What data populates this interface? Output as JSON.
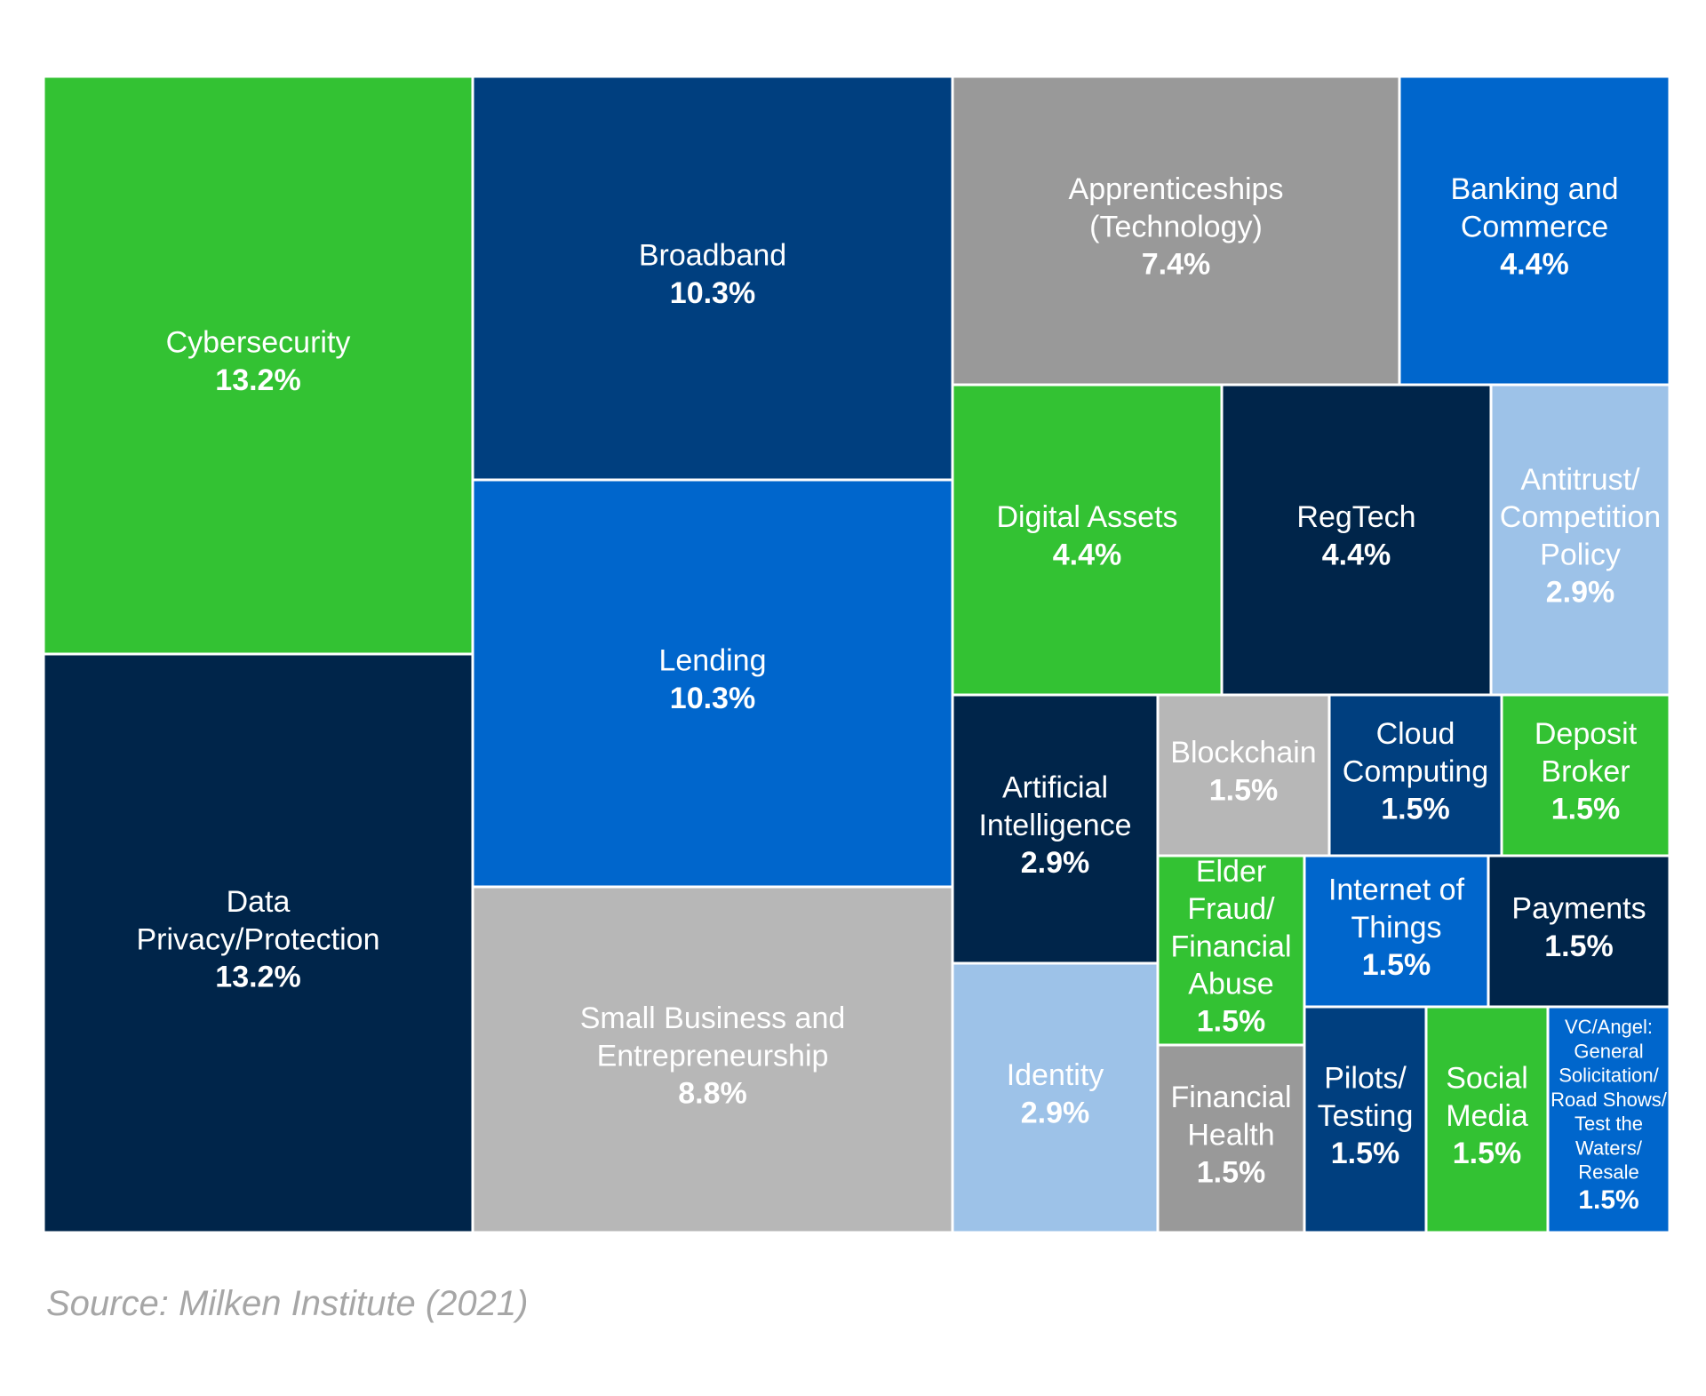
{
  "chart_data": {
    "type": "treemap",
    "title": "",
    "colors": {
      "green": "#33c233",
      "navy": "#003f7f",
      "dark_navy": "#00254a",
      "blue": "#0066cc",
      "gray": "#999999",
      "light_gray": "#b7b7b7",
      "light_blue": "#9dc2e8",
      "white": "#ffffff"
    },
    "items": [
      {
        "lines": [
          "Cybersecurity"
        ],
        "value_label": "13.2%",
        "value": 13.2,
        "color": "#33c233"
      },
      {
        "lines": [
          "Data",
          "Privacy/Protection"
        ],
        "value_label": "13.2%",
        "value": 13.2,
        "color": "#00254a"
      },
      {
        "lines": [
          "Broadband"
        ],
        "value_label": "10.3%",
        "value": 10.3,
        "color": "#003f7f"
      },
      {
        "lines": [
          "Lending"
        ],
        "value_label": "10.3%",
        "value": 10.3,
        "color": "#0066cc"
      },
      {
        "lines": [
          "Small Business and",
          "Entrepreneurship"
        ],
        "value_label": "8.8%",
        "value": 8.8,
        "color": "#b7b7b7"
      },
      {
        "lines": [
          "Apprenticeships",
          "(Technology)"
        ],
        "value_label": "7.4%",
        "value": 7.4,
        "color": "#999999"
      },
      {
        "lines": [
          "Banking and",
          "Commerce"
        ],
        "value_label": "4.4%",
        "value": 4.4,
        "color": "#0066cc"
      },
      {
        "lines": [
          "Digital Assets"
        ],
        "value_label": "4.4%",
        "value": 4.4,
        "color": "#33c233"
      },
      {
        "lines": [
          "RegTech"
        ],
        "value_label": "4.4%",
        "value": 4.4,
        "color": "#00254a"
      },
      {
        "lines": [
          "Antitrust/",
          "Competition",
          "Policy"
        ],
        "value_label": "2.9%",
        "value": 2.9,
        "color": "#9dc2e8"
      },
      {
        "lines": [
          "Artificial",
          "Intelligence"
        ],
        "value_label": "2.9%",
        "value": 2.9,
        "color": "#00254a"
      },
      {
        "lines": [
          "Identity"
        ],
        "value_label": "2.9%",
        "value": 2.9,
        "color": "#9dc2e8"
      },
      {
        "lines": [
          "Blockchain"
        ],
        "value_label": "1.5%",
        "value": 1.5,
        "color": "#b7b7b7"
      },
      {
        "lines": [
          "Cloud",
          "Computing"
        ],
        "value_label": "1.5%",
        "value": 1.5,
        "color": "#003f7f"
      },
      {
        "lines": [
          "Deposit",
          "Broker"
        ],
        "value_label": "1.5%",
        "value": 1.5,
        "color": "#33c233"
      },
      {
        "lines": [
          "Elder",
          "Fraud/",
          "Financial",
          "Abuse"
        ],
        "value_label": "1.5%",
        "value": 1.5,
        "color": "#33c233"
      },
      {
        "lines": [
          "Internet of",
          "Things"
        ],
        "value_label": "1.5%",
        "value": 1.5,
        "color": "#0066cc"
      },
      {
        "lines": [
          "Payments"
        ],
        "value_label": "1.5%",
        "value": 1.5,
        "color": "#00254a"
      },
      {
        "lines": [
          "Financial",
          "Health"
        ],
        "value_label": "1.5%",
        "value": 1.5,
        "color": "#999999"
      },
      {
        "lines": [
          "Pilots/",
          "Testing"
        ],
        "value_label": "1.5%",
        "value": 1.5,
        "color": "#003f7f"
      },
      {
        "lines": [
          "Social",
          "Media"
        ],
        "value_label": "1.5%",
        "value": 1.5,
        "color": "#33c233"
      },
      {
        "lines": [
          "VC/Angel:",
          "General",
          "Solicitation/",
          "Road Shows/",
          "Test the",
          "Waters/",
          "Resale"
        ],
        "value_label": "1.5%",
        "value": 1.5,
        "color": "#0066cc"
      }
    ]
  },
  "source": "Source: Milken Institute (2021)"
}
